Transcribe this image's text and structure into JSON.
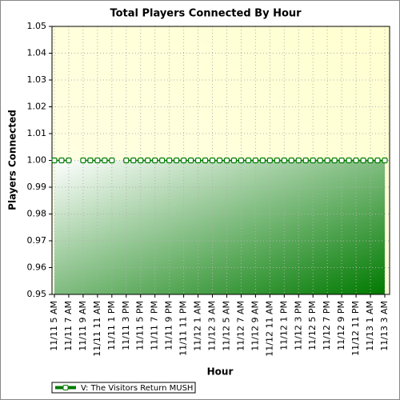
{
  "chart_data": {
    "type": "line",
    "title": "Total Players Connected By Hour",
    "x_label": "Hour",
    "y_label": "Players Connected",
    "categories": [
      "11/11 5 AM",
      null,
      "11/11 7 AM",
      null,
      "11/11 9 AM",
      null,
      "11/11 11 AM",
      null,
      "11/11 1 PM",
      null,
      "11/11 3 PM",
      null,
      "11/11 5 PM",
      null,
      "11/11 7 PM",
      null,
      "11/11 9 PM",
      null,
      "11/11 11 PM",
      null,
      "11/12 1 AM",
      null,
      "11/12 3 AM",
      null,
      "11/12 5 AM",
      null,
      "11/12 7 AM",
      null,
      "11/12 9 AM",
      null,
      "11/12 11 AM",
      null,
      "11/12 1 PM",
      null,
      "11/12 3 PM",
      null,
      "11/12 5 PM",
      null,
      "11/12 7 PM",
      null,
      "11/12 9 PM",
      null,
      "11/12 11 PM",
      null,
      "11/13 1 AM",
      null,
      "11/13 3 AM"
    ],
    "series": [
      {
        "name": "V: The Visitors Return MUSH",
        "color": "#007a00",
        "values": [
          1,
          1,
          1,
          null,
          1,
          1,
          1,
          1,
          1,
          null,
          1,
          1,
          1,
          1,
          1,
          1,
          1,
          1,
          1,
          1,
          1,
          1,
          1,
          1,
          1,
          1,
          1,
          1,
          1,
          1,
          1,
          1,
          1,
          1,
          1,
          1,
          1,
          1,
          1,
          1,
          1,
          1,
          1,
          1,
          1,
          1,
          1
        ]
      }
    ],
    "ylim": [
      0.95,
      1.05
    ],
    "yticks": [
      0.95,
      0.96,
      0.97,
      0.98,
      0.99,
      {
        "value": 1,
        "label": "1.00"
      },
      1.01,
      1.02,
      1.03,
      1.04,
      1.05
    ],
    "grid": true,
    "legend": "bottom-left"
  }
}
